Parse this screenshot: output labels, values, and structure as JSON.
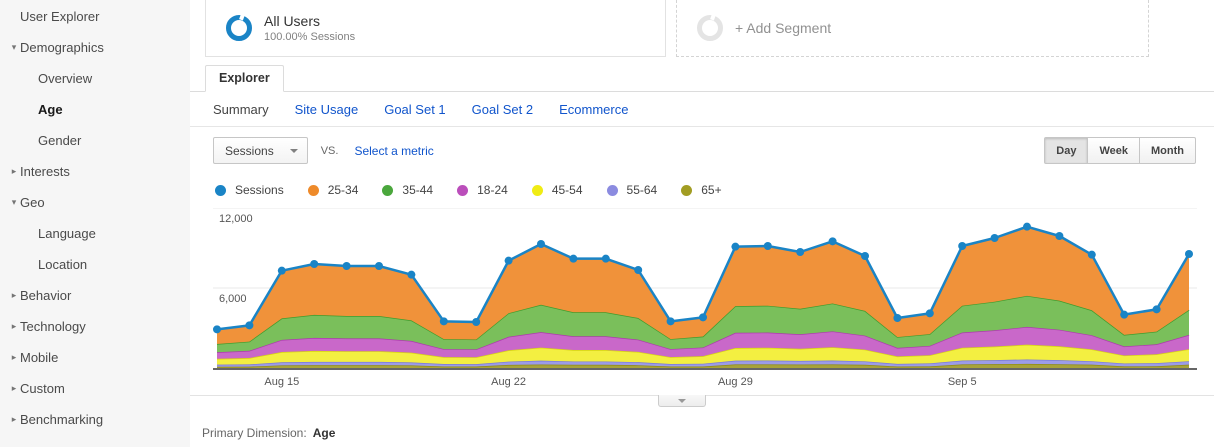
{
  "sidebar": {
    "items": [
      {
        "label": "User Explorer",
        "level": 0,
        "arrow": "none",
        "active": false
      },
      {
        "label": "Demographics",
        "level": 0,
        "arrow": "down",
        "active": false
      },
      {
        "label": "Overview",
        "level": 1,
        "arrow": "none",
        "active": false
      },
      {
        "label": "Age",
        "level": 1,
        "arrow": "none",
        "active": true
      },
      {
        "label": "Gender",
        "level": 1,
        "arrow": "none",
        "active": false
      },
      {
        "label": "Interests",
        "level": 0,
        "arrow": "right",
        "active": false
      },
      {
        "label": "Geo",
        "level": 0,
        "arrow": "down",
        "active": false
      },
      {
        "label": "Language",
        "level": 1,
        "arrow": "none",
        "active": false
      },
      {
        "label": "Location",
        "level": 1,
        "arrow": "none",
        "active": false
      },
      {
        "label": "Behavior",
        "level": 0,
        "arrow": "right",
        "active": false
      },
      {
        "label": "Technology",
        "level": 0,
        "arrow": "right",
        "active": false
      },
      {
        "label": "Mobile",
        "level": 0,
        "arrow": "right",
        "active": false
      },
      {
        "label": "Custom",
        "level": 0,
        "arrow": "right",
        "active": false
      },
      {
        "label": "Benchmarking",
        "level": 0,
        "arrow": "right",
        "active": false
      }
    ]
  },
  "segments": {
    "all_users": {
      "title": "All Users",
      "subtitle": "100.00% Sessions",
      "ring_color": "#1a84c6"
    },
    "add": {
      "label": "+ Add Segment",
      "ring_color": "#e4e4e4"
    }
  },
  "tabs": {
    "explorer_label": "Explorer"
  },
  "subnav": [
    {
      "label": "Summary",
      "active": true
    },
    {
      "label": "Site Usage",
      "active": false
    },
    {
      "label": "Goal Set 1",
      "active": false
    },
    {
      "label": "Goal Set 2",
      "active": false
    },
    {
      "label": "Ecommerce",
      "active": false
    }
  ],
  "toolbar": {
    "metric_selector": "Sessions",
    "vs_label": "VS.",
    "select_metric_label": "Select a metric",
    "granularity": [
      {
        "label": "Day",
        "active": true
      },
      {
        "label": "Week",
        "active": false
      },
      {
        "label": "Month",
        "active": false
      }
    ]
  },
  "legend": [
    {
      "label": "Sessions",
      "color": "#1a84c6"
    },
    {
      "label": "25-34",
      "color": "#ee8a2a"
    },
    {
      "label": "35-44",
      "color": "#4aa73c"
    },
    {
      "label": "18-24",
      "color": "#bb4ebb"
    },
    {
      "label": "45-54",
      "color": "#f0ec14"
    },
    {
      "label": "55-64",
      "color": "#8b8be0"
    },
    {
      "label": "65+",
      "color": "#a29d23"
    }
  ],
  "chart_data": {
    "type": "area",
    "stacked": true,
    "x": [
      "Aug 13",
      "Aug 14",
      "Aug 15",
      "Aug 16",
      "Aug 17",
      "Aug 18",
      "Aug 19",
      "Aug 20",
      "Aug 21",
      "Aug 22",
      "Aug 23",
      "Aug 24",
      "Aug 25",
      "Aug 26",
      "Aug 27",
      "Aug 28",
      "Aug 29",
      "Aug 30",
      "Aug 31",
      "Sep 1",
      "Sep 2",
      "Sep 3",
      "Sep 4",
      "Sep 5",
      "Sep 6",
      "Sep 7",
      "Sep 8",
      "Sep 9",
      "Sep 10",
      "Sep 11",
      "Sep 12"
    ],
    "x_axis_labels": [
      {
        "index": 2,
        "label": "Aug 15"
      },
      {
        "index": 9,
        "label": "Aug 22"
      },
      {
        "index": 16,
        "label": "Aug 29"
      },
      {
        "index": 23,
        "label": "Sep 5"
      }
    ],
    "ylim": [
      0,
      12000
    ],
    "yticks": [
      {
        "value": 12000,
        "label": "12,000"
      },
      {
        "value": 6000,
        "label": "6,000"
      }
    ],
    "grid": true,
    "legend_position": "top",
    "stack_order": [
      "65+",
      "55-64",
      "45-54",
      "18-24",
      "35-44",
      "25-34"
    ],
    "series": [
      {
        "name": "25-34",
        "fill": "#f0923a",
        "stroke": "#e07a10",
        "values": [
          1100,
          1220,
          3580,
          3820,
          3750,
          3750,
          3430,
          1330,
          1310,
          3940,
          4560,
          4020,
          4020,
          3600,
          1330,
          1440,
          4460,
          4480,
          4260,
          4660,
          4120,
          1430,
          1560,
          4480,
          4780,
          5190,
          4850,
          4170,
          1520,
          1670,
          4190
        ]
      },
      {
        "name": "35-44",
        "fill": "#7abf5b",
        "stroke": "#3f9c2d",
        "values": [
          620,
          690,
          1610,
          1720,
          1680,
          1680,
          1540,
          750,
          740,
          1770,
          2050,
          1800,
          1800,
          1620,
          750,
          820,
          2000,
          2010,
          1910,
          2090,
          1850,
          810,
          880,
          2010,
          2140,
          2330,
          2180,
          1870,
          860,
          950,
          1880
        ]
      },
      {
        "name": "18-24",
        "fill": "#c968c9",
        "stroke": "#ad3aad",
        "values": [
          490,
          540,
          910,
          980,
          960,
          960,
          880,
          600,
          590,
          1010,
          1160,
          1030,
          1030,
          920,
          600,
          650,
          1140,
          1140,
          1090,
          1190,
          1050,
          640,
          700,
          1140,
          1220,
          1330,
          1240,
          1060,
          680,
          750,
          1070
        ]
      },
      {
        "name": "45-54",
        "fill": "#f3ef41",
        "stroke": "#d6d310",
        "values": [
          440,
          480,
          770,
          820,
          800,
          800,
          730,
          520,
          520,
          850,
          980,
          860,
          860,
          770,
          520,
          570,
          950,
          960,
          910,
          1000,
          880,
          560,
          610,
          960,
          1020,
          1110,
          1040,
          890,
          600,
          660,
          900
        ]
      },
      {
        "name": "55-64",
        "fill": "#9c9ce8",
        "stroke": "#7878d8",
        "values": [
          160,
          170,
          230,
          240,
          240,
          240,
          220,
          190,
          180,
          250,
          290,
          250,
          250,
          230,
          190,
          210,
          280,
          290,
          270,
          290,
          260,
          200,
          230,
          290,
          300,
          330,
          310,
          260,
          220,
          240,
          260
        ]
      },
      {
        "name": "65+",
        "fill": "#a8a339",
        "stroke": "#8f8b15",
        "values": [
          90,
          100,
          200,
          220,
          220,
          220,
          200,
          110,
          110,
          230,
          260,
          240,
          240,
          210,
          110,
          110,
          270,
          270,
          260,
          270,
          240,
          110,
          120,
          270,
          290,
          310,
          280,
          250,
          120,
          130,
          250
        ]
      }
    ],
    "total_line": {
      "name": "Sessions",
      "color": "#1a84c6",
      "values": [
        2900,
        3200,
        7300,
        7800,
        7650,
        7650,
        7000,
        3500,
        3450,
        8050,
        9300,
        8200,
        8200,
        7350,
        3500,
        3800,
        9100,
        9150,
        8700,
        9500,
        8400,
        3750,
        4100,
        9150,
        9750,
        10600,
        9900,
        8500,
        4000,
        4400,
        8550
      ]
    }
  },
  "footer": {
    "primary_dimension_label": "Primary Dimension:",
    "primary_dimension_value": "Age"
  }
}
